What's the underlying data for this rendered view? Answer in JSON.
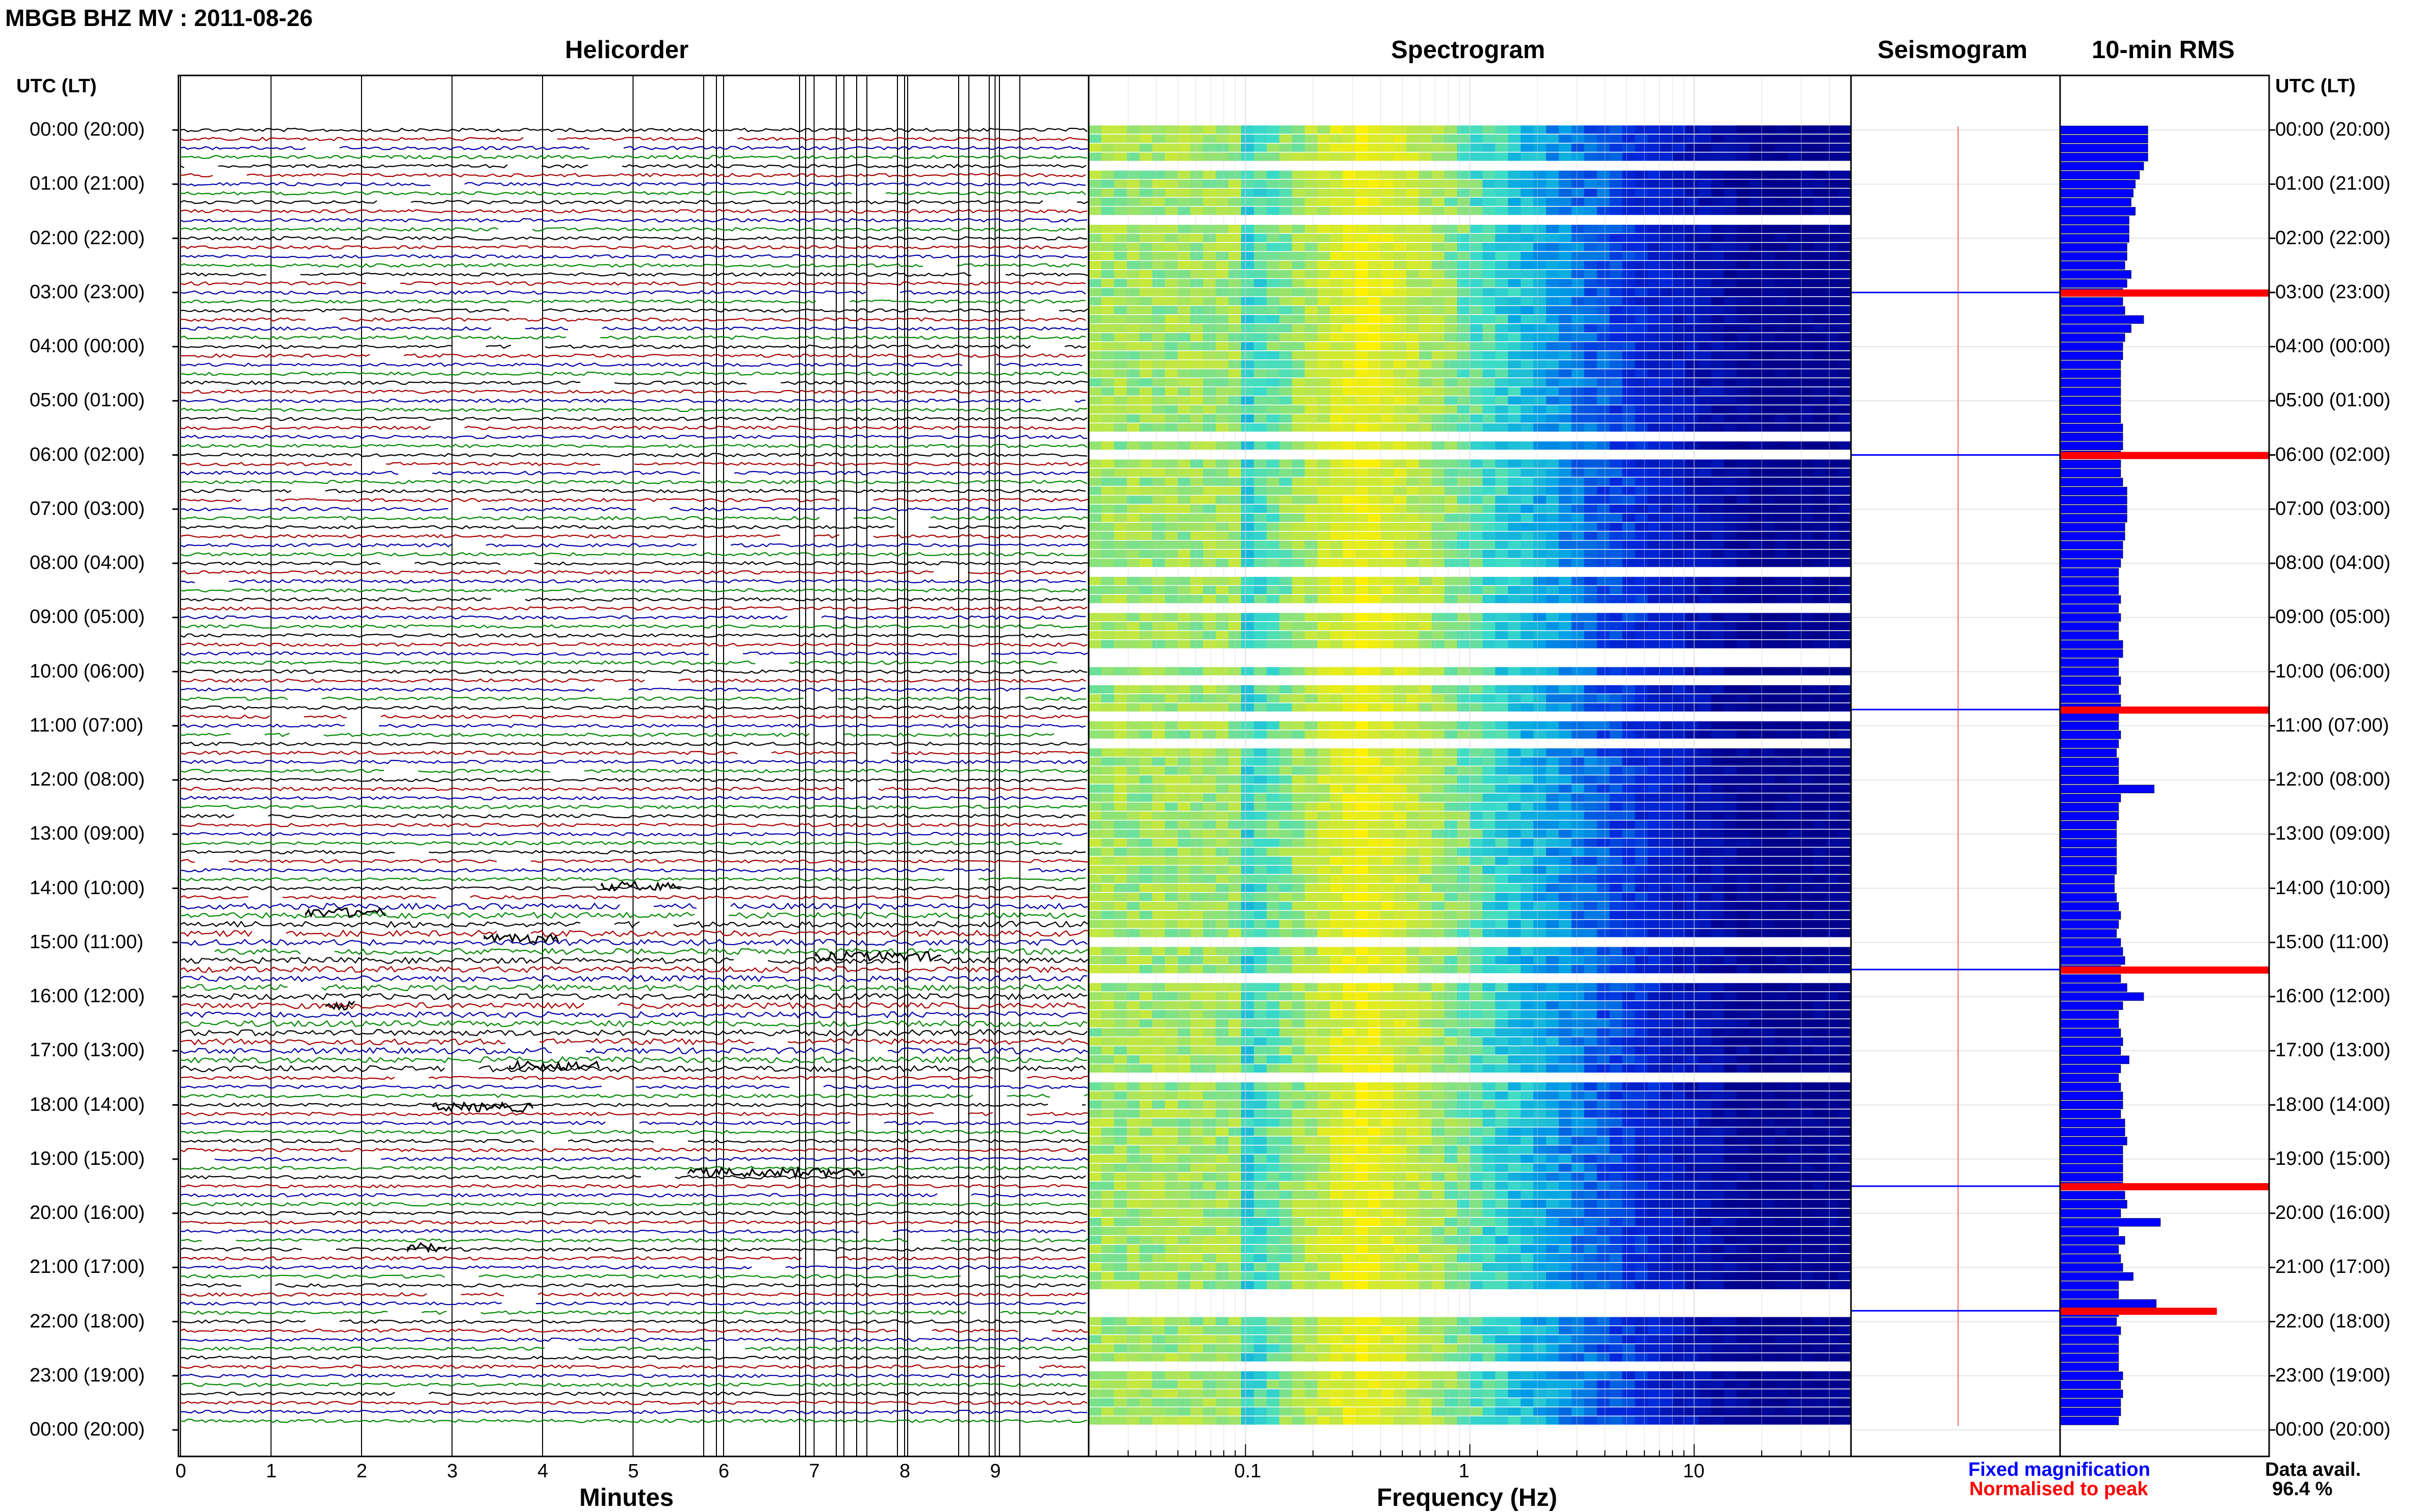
{
  "header": {
    "title": "MBGB BHZ MV : 2011-08-26"
  },
  "panels": {
    "helicorder": "Helicorder",
    "spectrogram": "Spectrogram",
    "seismogram": "Seismogram",
    "rms": "10-min RMS"
  },
  "time_axis": {
    "header": "UTC (LT)",
    "labels": [
      "00:00 (20:00)",
      "01:00 (21:00)",
      "02:00 (22:00)",
      "03:00 (23:00)",
      "04:00 (00:00)",
      "05:00 (01:00)",
      "06:00 (02:00)",
      "07:00 (03:00)",
      "08:00 (04:00)",
      "09:00 (05:00)",
      "10:00 (06:00)",
      "11:00 (07:00)",
      "12:00 (08:00)",
      "13:00 (09:00)",
      "14:00 (10:00)",
      "15:00 (11:00)",
      "16:00 (12:00)",
      "17:00 (13:00)",
      "18:00 (14:00)",
      "19:00 (15:00)",
      "20:00 (16:00)",
      "21:00 (17:00)",
      "22:00 (18:00)",
      "23:00 (19:00)",
      "00:00 (20:00)"
    ]
  },
  "legend": {
    "fixed": "Fixed magnification",
    "normalised": "Normalised to peak",
    "fixed_color": "#0000ff",
    "normalised_color": "#ff0000"
  },
  "data_avail": {
    "label": "Data avail.",
    "value": "96.4 %"
  },
  "colors": {
    "trace_cycle": [
      "#000000",
      "#aa0000",
      "#0000aa",
      "#008800"
    ],
    "spectrogram_low": "#00008b",
    "spectrogram_high": "#ffff00",
    "rms_fixed": "#0000ff",
    "rms_norm": "#ff0000"
  },
  "chart_data": [
    {
      "type": "line",
      "panel": "helicorder",
      "xlabel": "Minutes",
      "xlim": [
        0,
        10
      ],
      "xticks": [
        0,
        1,
        2,
        3,
        4,
        5,
        6,
        7,
        8,
        9
      ],
      "rows_per_hour": 6,
      "rows": 144
    },
    {
      "type": "heatmap",
      "panel": "spectrogram",
      "xlabel": "Frequency (Hz)",
      "xscale": "log",
      "xlim": [
        0.02,
        50
      ],
      "xticks": [
        0.1,
        1,
        10
      ],
      "xtick_labels": [
        "0.1",
        "1",
        "10"
      ],
      "peak_band_hz": [
        0.3,
        0.4
      ]
    },
    {
      "type": "line",
      "panel": "seismogram"
    },
    {
      "type": "bar",
      "panel": "rms",
      "orientation": "horizontal",
      "interval_minutes": 10,
      "fixed_values": [
        0.42,
        0.42,
        0.42,
        0.42,
        0.4,
        0.38,
        0.36,
        0.35,
        0.34,
        0.36,
        0.33,
        0.33,
        0.33,
        0.32,
        0.32,
        0.31,
        0.34,
        0.32,
        0.3,
        0.3,
        0.31,
        0.4,
        0.34,
        0.31,
        0.3,
        0.3,
        0.29,
        0.29,
        0.29,
        0.29,
        0.29,
        0.29,
        0.29,
        0.3,
        0.3,
        0.3,
        0.29,
        0.29,
        0.29,
        0.3,
        0.32,
        0.32,
        0.32,
        0.32,
        0.31,
        0.31,
        0.3,
        0.3,
        0.29,
        0.28,
        0.28,
        0.28,
        0.29,
        0.28,
        0.29,
        0.28,
        0.28,
        0.3,
        0.3,
        0.28,
        0.28,
        0.29,
        0.28,
        0.29,
        0.29,
        0.28,
        0.28,
        0.29,
        0.28,
        0.27,
        0.28,
        0.28,
        0.28,
        0.45,
        0.29,
        0.28,
        0.28,
        0.27,
        0.27,
        0.27,
        0.27,
        0.27,
        0.27,
        0.26,
        0.26,
        0.27,
        0.28,
        0.29,
        0.28,
        0.27,
        0.29,
        0.3,
        0.31,
        0.29,
        0.29,
        0.32,
        0.4,
        0.3,
        0.28,
        0.28,
        0.29,
        0.3,
        0.29,
        0.33,
        0.29,
        0.28,
        0.29,
        0.3,
        0.3,
        0.29,
        0.31,
        0.31,
        0.32,
        0.3,
        0.3,
        0.3,
        0.3,
        0.3,
        0.31,
        0.32,
        0.29,
        0.48,
        0.28,
        0.31,
        0.28,
        0.29,
        0.3,
        0.35,
        0.28,
        0.28,
        0.46,
        0.28,
        0.27,
        0.29,
        0.28,
        0.28,
        0.28,
        0.28,
        0.3,
        0.29,
        0.3,
        0.29,
        0.29,
        0.28
      ]
    }
  ]
}
